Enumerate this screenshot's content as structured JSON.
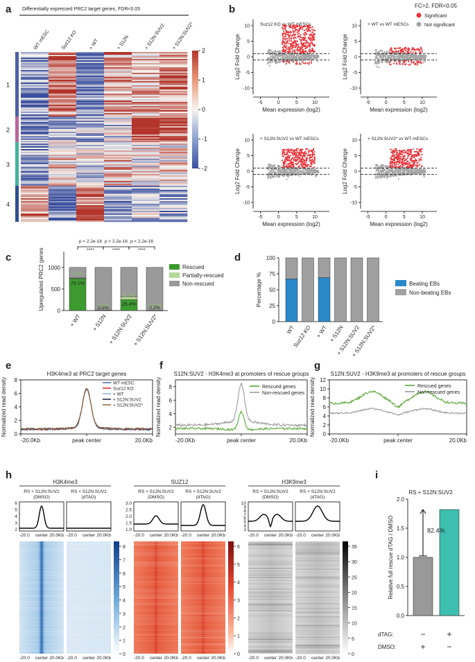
{
  "figure": {
    "panel_labels": [
      "a",
      "b",
      "c",
      "d",
      "e",
      "f",
      "g",
      "h",
      "i"
    ]
  },
  "panel_a": {
    "title": "Differentially expressed PRC2 target genes, FDR<0.05",
    "columns": [
      "WT mESC",
      "Suz12 KO",
      "+ WT",
      "+ S12N",
      "+ S12N:SUV2",
      "+ S12N:SUV2*"
    ],
    "clusters": [
      "1",
      "2",
      "3",
      "4"
    ],
    "cluster_colors": [
      "#4d5fa8",
      "#b7669c",
      "#45b39c",
      "#2f4f8f"
    ],
    "colorbar_ticks": [
      "2",
      "1",
      "0",
      "-1",
      "-2"
    ],
    "colors": {
      "high": "#b2342a",
      "mid": "#f6f3ee",
      "low": "#3b4f9e"
    }
  },
  "panel_b": {
    "legend_title": "FC>2, FDR<0.05",
    "legend": [
      "Significant",
      "Not significant"
    ],
    "colors": {
      "significant": "#e8343a",
      "not_significant": "#a7a7a7"
    },
    "ylabel": "Log2 Fold Change",
    "xlabel": "Mean expression (log2)",
    "xticks": [
      "-5",
      "0",
      "5",
      "10"
    ],
    "yticks": [
      "10",
      "5",
      "0",
      "-5",
      "-10"
    ],
    "titles": [
      "Suz12 KO vs WT mESCs",
      "+ WT vs WT mESCs",
      "+ S12N:SUV2 vs WT mESCs",
      "+ S12N:SUV2* vs WT mESCs"
    ]
  },
  "panel_c": {
    "ylabel": "Upregulated PRC2 genes",
    "yticks": [
      "1000",
      "500",
      "0"
    ],
    "categories": [
      "+ WT",
      "+ S12N",
      "+ S12N:SUV2",
      "+ S12N:SUV2*"
    ],
    "legend": [
      "Rescued",
      "Partially-rescued",
      "Non-rescued"
    ],
    "colors": {
      "rescued": "#3c9a2f",
      "partial": "#b5d99a",
      "non": "#9a9a9a"
    },
    "pvals": [
      "p < 2.2e-16",
      "p < 2.2e-16",
      "p < 2.2e-16"
    ],
    "stars": "****",
    "labels_partial": [
      "1.5%",
      "0.4%",
      "6.7%",
      "0.07%"
    ],
    "labels_rescued": [
      "74.1%",
      "0.8%",
      "25.4%",
      "0.2%"
    ]
  },
  "panel_d": {
    "ylabel": "Percentage %",
    "yticks": [
      "100",
      "75",
      "50",
      "25",
      "0"
    ],
    "categories": [
      "WT",
      "Suz12 KO",
      "+ WT",
      "+ S12N",
      "+ S12N:SUV2",
      "+ S12N:SUV2*"
    ],
    "legend": [
      "Beating EBs",
      "Non-beating EBs"
    ],
    "colors": {
      "beating": "#2b88c9",
      "non": "#a0a0a0"
    }
  },
  "panel_e": {
    "title": "H3K4me3 at PRC2 target genes",
    "ylabel": "Normalized read density",
    "yticks": [
      "8",
      "6",
      "4",
      "2",
      "0"
    ],
    "xticks": [
      "-20.0Kb",
      "peak center",
      "20.0Kb"
    ],
    "legend": [
      "WT mESC",
      "Suz12 KO",
      "+ WT",
      "+ S12N:SUV2",
      "+ S12N:SUV2*"
    ],
    "colors": [
      "#4a6fb0",
      "#d9352b",
      "#8fb2d8",
      "#1e2a4a",
      "#9a6b3a"
    ]
  },
  "panel_f": {
    "title": "S12N:SUV2 - H3K4me3 at promoters of rescue groups",
    "ylabel": "Normalized read density",
    "yticks": [
      "8",
      "6",
      "4",
      "2"
    ],
    "xticks": [
      "-20.0Kb",
      "peak center",
      "20.0Kb"
    ],
    "legend": [
      "Rescued genes",
      "Non-rescued genes"
    ],
    "colors": [
      "#5aa634",
      "#9a9a9a"
    ]
  },
  "panel_g": {
    "title": "S12N:SUV2 - H3K9me3 at promoters of rescue groups",
    "ylabel": "Normalized read density",
    "yticks": [
      "12",
      "10",
      "8",
      "6",
      "4",
      "2",
      "0"
    ],
    "xticks": [
      "-20.0Kb",
      "peak center",
      "20.0Kb"
    ],
    "legend": [
      "Rescued genes",
      "Non-rescued genes"
    ],
    "colors": [
      "#5aa634",
      "#9a9a9a"
    ]
  },
  "panel_h": {
    "groups": [
      {
        "title": "H3K4me3",
        "sub": [
          "RS + S12N:SUV2",
          "RS + S12N:SUV2"
        ],
        "cond": [
          "(DMSO)",
          "(dTAG)"
        ],
        "yticks": [
          "6",
          "5",
          "4",
          "3",
          "2"
        ],
        "cbar": [
          "8",
          "7",
          "6",
          "5",
          "4",
          "3",
          "2",
          "1",
          "0"
        ],
        "color": "#2f6db3"
      },
      {
        "title": "SUZ12",
        "sub": [
          "RS + S12N:SUV2",
          "RS + S12N:SUV2"
        ],
        "cond": [
          "(DMSO)",
          "(dTAG)"
        ],
        "yticks": [
          "3.0",
          "2.5",
          "2.0",
          "1.5",
          "1.0"
        ],
        "cbar": [
          "6",
          "5",
          "4",
          "3",
          "2",
          "1",
          "0"
        ],
        "color": "#d9372b"
      },
      {
        "title": "H3K9me3",
        "sub": [
          "RS + S12N:SUV2",
          "RS + S12N:SUV2"
        ],
        "cond": [
          "(DMSO)",
          "(dTAG)"
        ],
        "yticks": [
          "10",
          "9",
          "8",
          "7",
          "6",
          "5",
          "4",
          "3"
        ],
        "cbar": [
          "35",
          "30",
          "25",
          "20",
          "15",
          "10",
          "5",
          "0"
        ],
        "color": "#111111"
      }
    ],
    "xticks": [
      "-20.0",
      "center",
      "20.0Kb"
    ]
  },
  "panel_i": {
    "title": "RS + S12N:SUV2",
    "ylabel": "Relative full rescue dTAG / DMSO",
    "yticks": [
      "2.0",
      "1.5",
      "1.0",
      "0.5",
      "0.0"
    ],
    "annotation": "82.4%",
    "colors": {
      "dmso": "#999999",
      "dtag": "#3cbfae"
    },
    "row_labels": [
      "dTAG:",
      "DMSO:"
    ],
    "signs": [
      [
        "−",
        "+"
      ],
      [
        "+",
        "−"
      ]
    ]
  },
  "chart_data": [
    {
      "type": "bar",
      "panel": "c",
      "title": "Upregulated PRC2 genes",
      "categories": [
        "+ WT",
        "+ S12N",
        "+ S12N:SUV2",
        "+ S12N:SUV2*"
      ],
      "series": [
        {
          "name": "Rescued",
          "values": [
            74.1,
            0.8,
            25.4,
            0.2
          ]
        },
        {
          "name": "Partially-rescued",
          "values": [
            1.5,
            0.4,
            6.7,
            0.07
          ]
        },
        {
          "name": "Non-rescued",
          "values": [
            24.4,
            98.8,
            67.9,
            99.73
          ]
        }
      ],
      "ylabel": "Upregulated PRC2 genes",
      "ylim": [
        0,
        1350
      ]
    },
    {
      "type": "bar",
      "panel": "d",
      "categories": [
        "WT",
        "Suz12 KO",
        "+ WT",
        "+ S12N",
        "+ S12N:SUV2",
        "+ S12N:SUV2*"
      ],
      "series": [
        {
          "name": "Beating EBs",
          "values": [
            67,
            0,
            69,
            0,
            0,
            0
          ]
        },
        {
          "name": "Non-beating EBs",
          "values": [
            33,
            100,
            31,
            100,
            100,
            100
          ]
        }
      ],
      "ylabel": "Percentage %",
      "ylim": [
        0,
        100
      ]
    },
    {
      "type": "bar",
      "panel": "i",
      "title": "RS + S12N:SUV2",
      "categories": [
        "DMSO",
        "dTAG"
      ],
      "values": [
        1.0,
        1.82
      ],
      "ylabel": "Relative full rescue dTAG / DMSO",
      "ylim": [
        0,
        2.0
      ]
    },
    {
      "type": "line",
      "panel": "e",
      "title": "H3K4me3 at PRC2 target genes",
      "x": [
        -20,
        -10,
        -5,
        -2,
        -1,
        0,
        1,
        2,
        5,
        10,
        20
      ],
      "series": [
        {
          "name": "WT mESC",
          "values": [
            0.7,
            0.8,
            1.1,
            2.8,
            4.8,
            6.4,
            4.8,
            2.8,
            1.1,
            0.8,
            0.7
          ]
        }
      ],
      "ylim": [
        0,
        8
      ]
    },
    {
      "type": "line",
      "panel": "f",
      "title": "S12N:SUV2 - H3K4me3 at promoters of rescue groups",
      "x": [
        -20,
        -10,
        -5,
        -2,
        -1,
        0,
        1,
        2,
        5,
        10,
        20
      ],
      "series": [
        {
          "name": "Rescued genes",
          "values": [
            1.9,
            1.8,
            1.7,
            2.0,
            2.8,
            4.5,
            2.8,
            2.0,
            1.7,
            1.8,
            1.9
          ]
        },
        {
          "name": "Non-rescued genes",
          "values": [
            2.3,
            2.4,
            2.6,
            3.8,
            5.5,
            7.8,
            5.5,
            3.8,
            2.6,
            2.4,
            2.3
          ]
        }
      ],
      "ylim": [
        1,
        9
      ]
    },
    {
      "type": "line",
      "panel": "g",
      "title": "S12N:SUV2 - H3K9me3 at promoters of rescue groups",
      "x": [
        -20,
        -10,
        -5,
        -2,
        0,
        2,
        5,
        10,
        20
      ],
      "series": [
        {
          "name": "Rescued genes",
          "values": [
            6.4,
            7.2,
            8.6,
            8.0,
            7.4,
            8.0,
            8.6,
            7.2,
            6.4
          ]
        },
        {
          "name": "Non-rescued genes",
          "values": [
            4.5,
            4.8,
            5.3,
            5.0,
            4.6,
            5.0,
            5.3,
            4.8,
            4.5
          ]
        }
      ],
      "ylim": [
        0,
        12
      ]
    }
  ]
}
